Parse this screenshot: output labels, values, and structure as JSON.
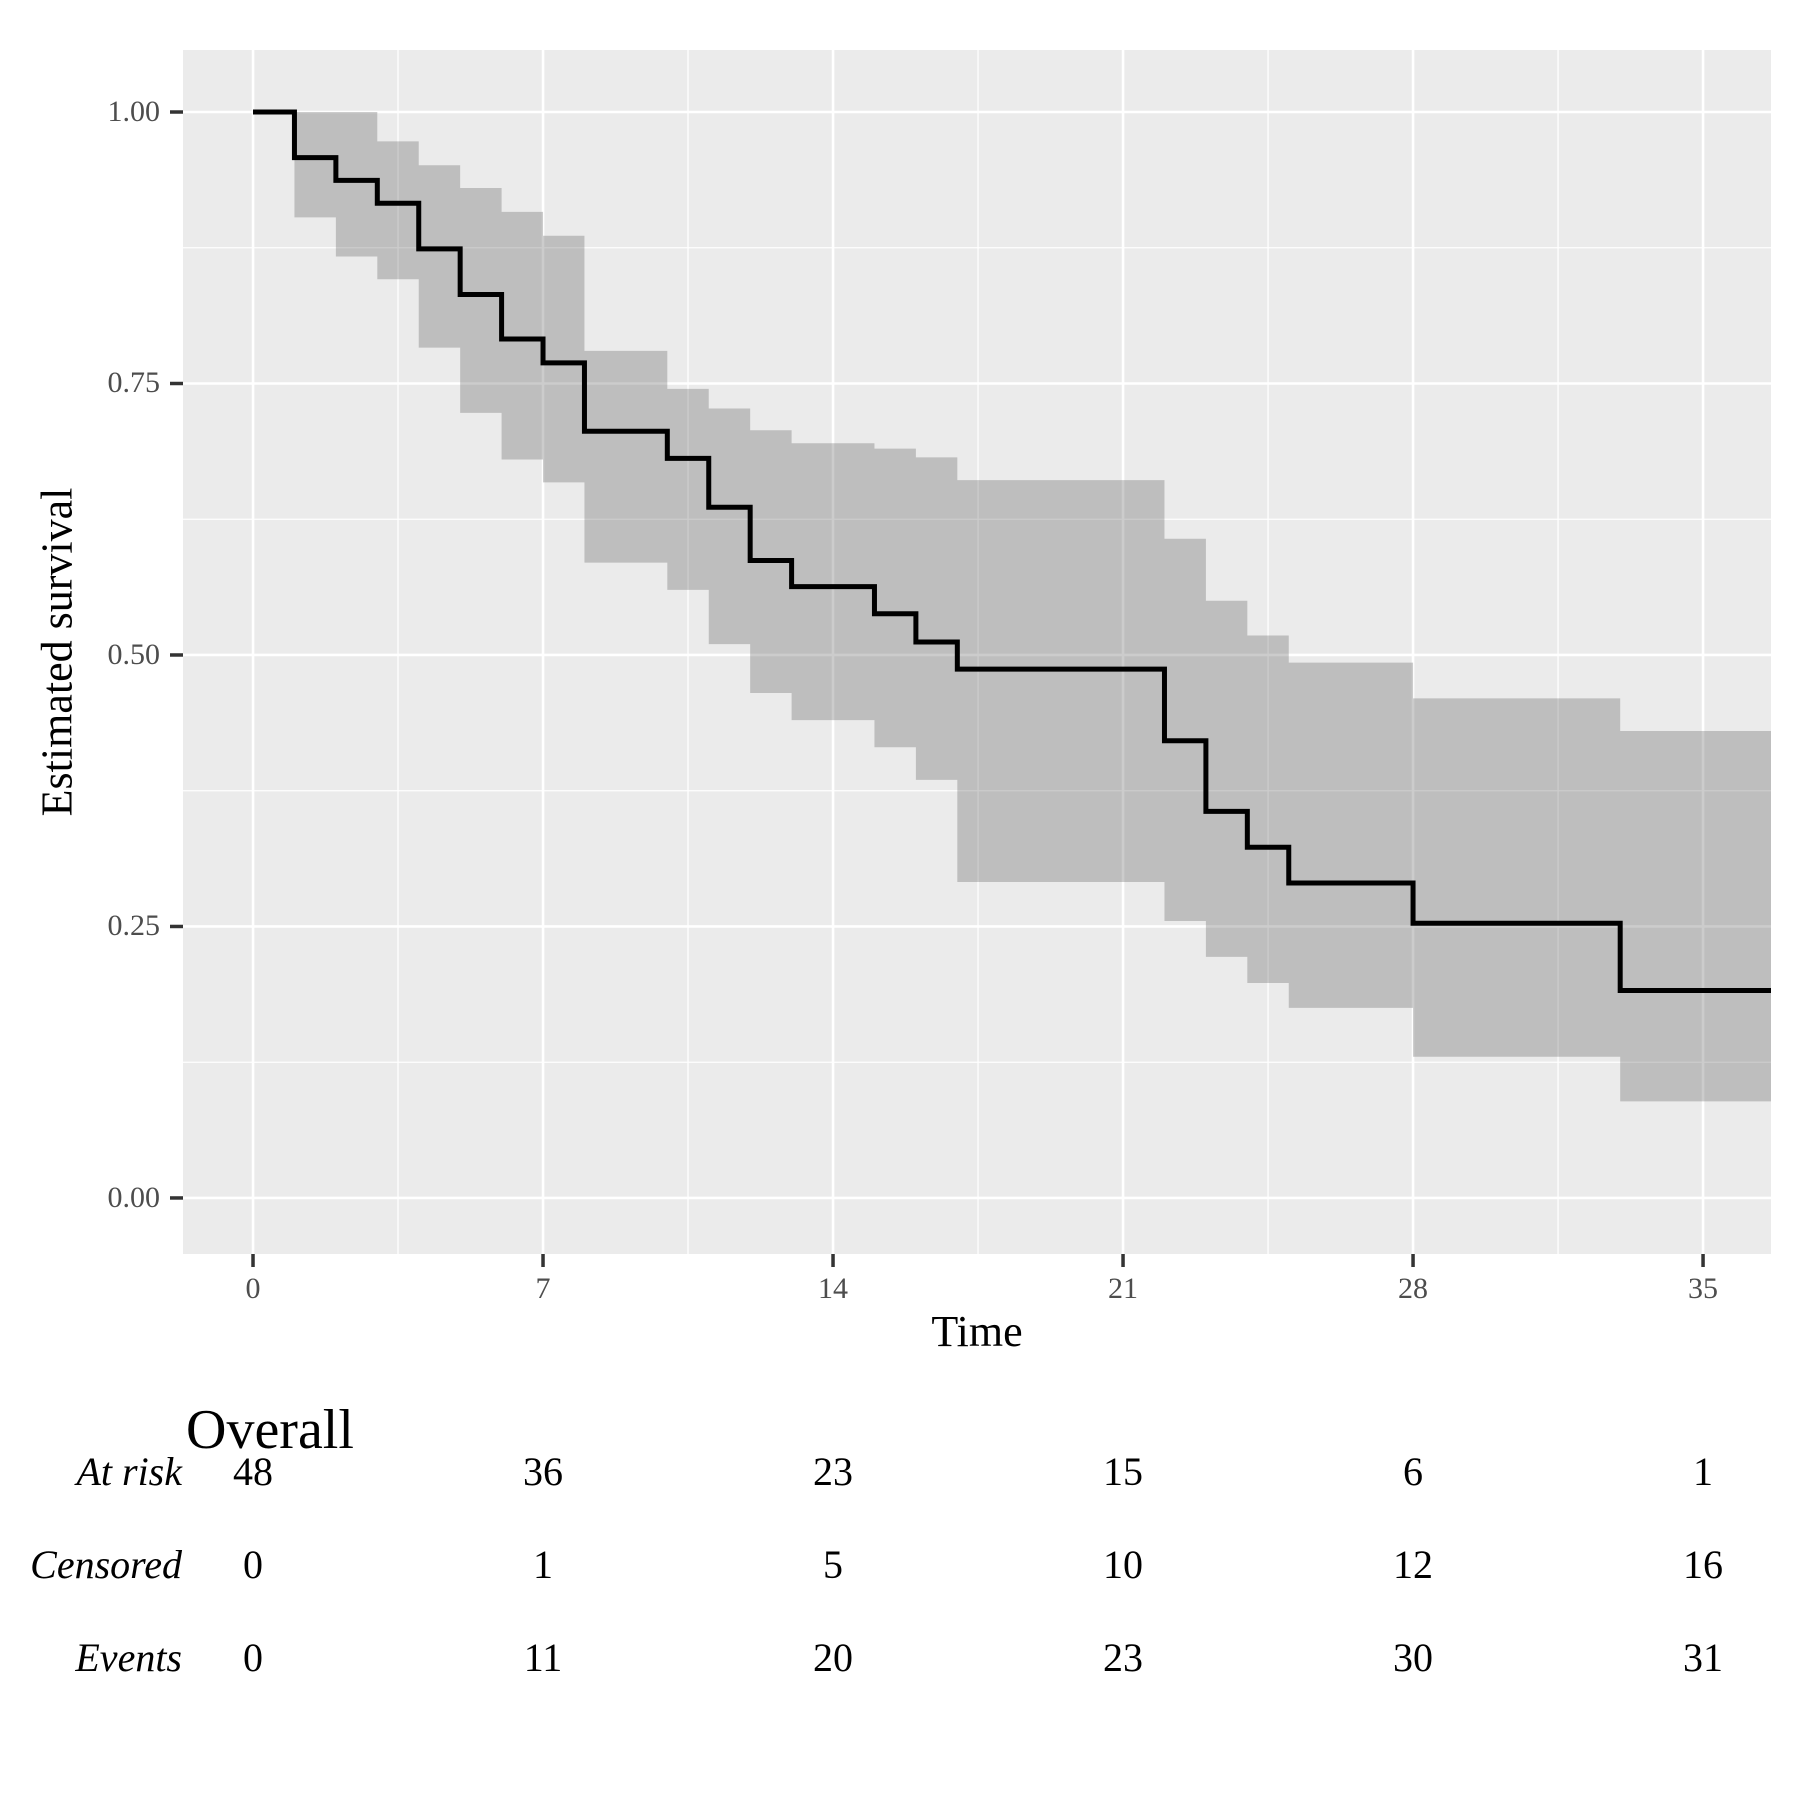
{
  "figure": {
    "background": "#ffffff"
  },
  "chart_data": {
    "type": "line",
    "subtype": "kaplan-meier-step",
    "title": "",
    "xlabel": "Time",
    "ylabel": "Estimated survival",
    "xlim": [
      -1.69,
      36.64
    ],
    "ylim": [
      -0.0516,
      1.0571
    ],
    "x_ticks": [
      0,
      7,
      14,
      21,
      28,
      35
    ],
    "x_tick_labels": [
      "0",
      "7",
      "14",
      "21",
      "28",
      "35"
    ],
    "y_ticks": [
      1.0,
      0.75,
      0.5,
      0.25,
      0.0
    ],
    "y_tick_labels": [
      "1.00",
      "0.75",
      "0.50",
      "0.25",
      "0.00"
    ],
    "x_minor_ticks": [
      3.5,
      10.5,
      17.5,
      24.5,
      31.5
    ],
    "y_minor_ticks": [
      0.875,
      0.625,
      0.375,
      0.125
    ],
    "grid": true,
    "legend_position": "none",
    "panel_color": "#EBEBEB",
    "grid_color": "#FFFFFF",
    "curve_color": "#000000",
    "ribbon_color": "rgba(100,100,100,0.33)",
    "tick_label_color": "#4D4D4D",
    "series": [
      {
        "name": "Overall",
        "steps": [
          [
            0,
            1.0
          ],
          [
            1,
            0.958
          ],
          [
            2,
            0.937
          ],
          [
            3,
            0.916
          ],
          [
            4,
            0.874
          ],
          [
            5,
            0.832
          ],
          [
            6,
            0.791
          ],
          [
            7,
            0.769
          ],
          [
            8,
            0.706
          ],
          [
            10,
            0.681
          ],
          [
            11,
            0.636
          ],
          [
            12,
            0.587
          ],
          [
            13,
            0.563
          ],
          [
            15,
            0.538
          ],
          [
            16,
            0.512
          ],
          [
            17,
            0.487
          ],
          [
            22,
            0.421
          ],
          [
            23,
            0.356
          ],
          [
            24,
            0.323
          ],
          [
            25,
            0.29
          ],
          [
            28,
            0.253
          ],
          [
            33,
            0.191
          ]
        ],
        "end_time": 36.64,
        "ci_steps": [
          [
            1,
            1.0,
            0.903
          ],
          [
            2,
            1.0,
            0.867
          ],
          [
            3,
            0.973,
            0.846
          ],
          [
            4,
            0.951,
            0.783
          ],
          [
            5,
            0.93,
            0.723
          ],
          [
            6,
            0.908,
            0.68
          ],
          [
            7,
            0.886,
            0.659
          ],
          [
            8,
            0.78,
            0.585
          ],
          [
            10,
            0.745,
            0.56
          ],
          [
            11,
            0.727,
            0.51
          ],
          [
            12,
            0.707,
            0.465
          ],
          [
            13,
            0.695,
            0.44
          ],
          [
            15,
            0.69,
            0.415
          ],
          [
            16,
            0.682,
            0.385
          ],
          [
            17,
            0.661,
            0.291
          ],
          [
            22,
            0.607,
            0.255
          ],
          [
            23,
            0.55,
            0.222
          ],
          [
            24,
            0.518,
            0.198
          ],
          [
            25,
            0.493,
            0.175
          ],
          [
            28,
            0.46,
            0.13
          ],
          [
            33,
            0.43,
            0.089
          ]
        ]
      }
    ],
    "risk_table": {
      "group_label": "Overall",
      "times": [
        0,
        7,
        14,
        21,
        28,
        35
      ],
      "rows": [
        {
          "label": "At risk",
          "values": [
            "48",
            "36",
            "23",
            "15",
            "6",
            "1"
          ]
        },
        {
          "label": "Censored",
          "values": [
            "0",
            "1",
            "5",
            "10",
            "12",
            "16"
          ]
        },
        {
          "label": "Events",
          "values": [
            "0",
            "11",
            "20",
            "23",
            "30",
            "31"
          ]
        }
      ]
    }
  }
}
